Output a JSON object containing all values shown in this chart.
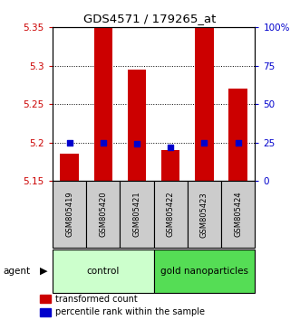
{
  "title": "GDS4571 / 179265_at",
  "samples": [
    "GSM805419",
    "GSM805420",
    "GSM805421",
    "GSM805422",
    "GSM805423",
    "GSM805424"
  ],
  "red_values": [
    5.185,
    5.35,
    5.295,
    5.19,
    5.35,
    5.27
  ],
  "blue_values": [
    5.2,
    5.2,
    5.198,
    5.193,
    5.2,
    5.2
  ],
  "ylim": [
    5.15,
    5.35
  ],
  "yticks_left": [
    5.15,
    5.2,
    5.25,
    5.3,
    5.35
  ],
  "yticks_right_vals": [
    0,
    25,
    50,
    75,
    100
  ],
  "yticks_right_labels": [
    "0",
    "25",
    "50",
    "75",
    "100%"
  ],
  "group_control_color": "#ccffcc",
  "group_gold_color": "#55dd55",
  "agent_label": "agent",
  "bar_color": "#cc0000",
  "dot_color": "#0000cc",
  "bar_width": 0.55,
  "dot_size": 25,
  "background_color": "#ffffff",
  "left_tick_color": "#cc0000",
  "right_tick_color": "#0000cc",
  "label_box_color": "#cccccc",
  "gridline_ticks": [
    5.2,
    5.25,
    5.3
  ]
}
